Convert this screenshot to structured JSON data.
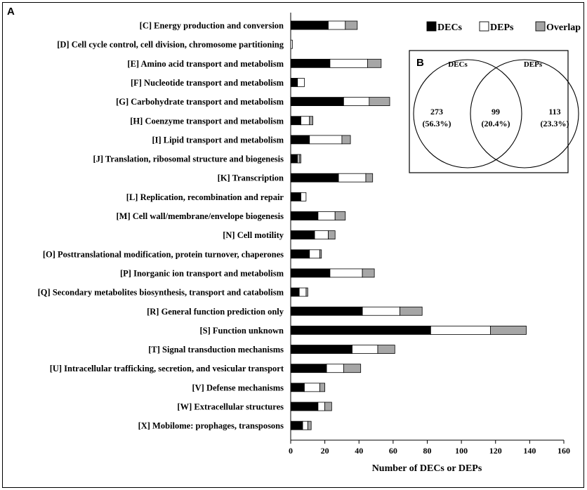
{
  "panel_a": "A",
  "panel_b": "B",
  "chart_data": [
    {
      "type": "bar",
      "orientation": "horizontal",
      "stacked": true,
      "title": "",
      "xlabel": "Number of DECs or DEPs",
      "ylabel": "",
      "xlim": [
        0,
        160
      ],
      "xticks": [
        "0",
        "20",
        "40",
        "60",
        "80",
        "100",
        "120",
        "140",
        "160"
      ],
      "legend_position": "top-right",
      "categories": [
        "[C] Energy production and conversion",
        "[D] Cell cycle control, cell division, chromosome partitioning",
        "[E] Amino acid transport and metabolism",
        "[F] Nucleotide transport and metabolism",
        "[G] Carbohydrate transport and metabolism",
        "[H] Coenzyme transport and metabolism",
        "[I] Lipid transport and metabolism",
        "[J] Translation, ribosomal structure and biogenesis",
        "[K] Transcription",
        "[L] Replication, recombination and repair",
        "[M] Cell wall/membrane/envelope biogenesis",
        "[N] Cell motility",
        "[O] Posttranslational modification, protein turnover, chaperones",
        "[P] Inorganic ion transport and metabolism",
        "[Q] Secondary metabolites biosynthesis, transport and catabolism",
        "[R] General function prediction only",
        "[S] Function unknown",
        "[T] Signal transduction mechanisms",
        "[U] Intracellular trafficking, secretion, and vesicular transport",
        "[V] Defense mechanisms",
        "[W] Extracellular structures",
        "[X] Mobilome: prophages, transposons"
      ],
      "series": [
        {
          "name": "DECs",
          "color": "#000000",
          "values": [
            22,
            0,
            23,
            4,
            31,
            6,
            11,
            4,
            28,
            6,
            16,
            14,
            11,
            23,
            5,
            42,
            82,
            36,
            21,
            8,
            16,
            7
          ]
        },
        {
          "name": "DEPs",
          "color": "#ffffff",
          "values": [
            10,
            1,
            22,
            4,
            15,
            5,
            19,
            1,
            16,
            3,
            10,
            8,
            6,
            19,
            4,
            22,
            35,
            15,
            10,
            9,
            4,
            3
          ]
        },
        {
          "name": "Overlap",
          "color": "#a6a6a6",
          "values": [
            7,
            0,
            8,
            0,
            12,
            2,
            5,
            1,
            4,
            0,
            6,
            4,
            1,
            7,
            1,
            13,
            21,
            10,
            10,
            3,
            4,
            2
          ]
        }
      ]
    },
    {
      "type": "venn",
      "sets": [
        "DECs",
        "DEPs"
      ],
      "regions": [
        {
          "name": "DECs only",
          "value": "273",
          "percent": "(56.3%)"
        },
        {
          "name": "DECs and DEPs",
          "value": "99",
          "percent": "(20.4%)"
        },
        {
          "name": "DEPs only",
          "value": "113",
          "percent": "(23.3%)"
        }
      ]
    }
  ]
}
